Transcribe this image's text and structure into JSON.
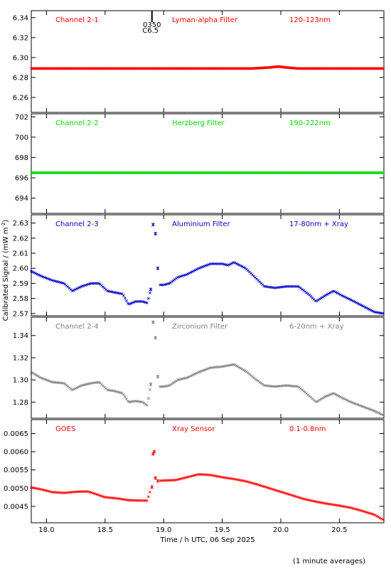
{
  "figure": {
    "ylabel": "Calibrated Signal / (mW m",
    "ylabel_sup": "-2",
    "ylabel_end": ")",
    "xlabel": "Time / h UTC, 06 Sep 2025",
    "footnote": "(1 minute averages)",
    "marker_label_top": "0350",
    "marker_label_bottom": "C6.5",
    "marker_time": 18.9
  },
  "chart_data": [
    {
      "type": "scatter",
      "name": "Channel 2-1",
      "filter": "Lyman-alpha Filter",
      "band": "120-123nm",
      "color": "#ff0000",
      "xlim": [
        17.87,
        20.88
      ],
      "ylim": [
        6.245,
        6.347
      ],
      "yticks": [
        6.26,
        6.28,
        6.3,
        6.32,
        6.34
      ],
      "ytick_labels": [
        "6.26",
        "6.28",
        "6.30",
        "6.32",
        "6.34"
      ],
      "x": [
        17.87,
        18.0,
        18.25,
        18.5,
        18.75,
        18.88,
        18.95,
        19.25,
        19.5,
        19.75,
        19.9,
        19.98,
        20.05,
        20.15,
        20.4,
        20.65,
        20.88
      ],
      "y": [
        6.289,
        6.289,
        6.289,
        6.289,
        6.289,
        6.289,
        6.289,
        6.289,
        6.289,
        6.289,
        6.29,
        6.291,
        6.29,
        6.289,
        6.289,
        6.289,
        6.289
      ]
    },
    {
      "type": "scatter",
      "name": "Channel 2-2",
      "filter": "Herzberg Filter",
      "band": "190-222nm",
      "color": "#00dd00",
      "xlim": [
        17.87,
        20.88
      ],
      "ylim": [
        692.5,
        702.3
      ],
      "yticks": [
        694,
        696,
        698,
        700,
        702
      ],
      "ytick_labels": [
        "694",
        "696",
        "698",
        "700",
        "702"
      ],
      "x": [
        17.87,
        18.2,
        18.5,
        18.8,
        19.0,
        19.3,
        19.6,
        19.9,
        20.2,
        20.5,
        20.88
      ],
      "y": [
        696.5,
        696.5,
        696.5,
        696.5,
        696.5,
        696.5,
        696.5,
        696.5,
        696.5,
        696.5,
        696.5
      ]
    },
    {
      "type": "scatter",
      "name": "Channel 2-3",
      "filter": "Aluminium Filter",
      "band": "17-80nm + Xray",
      "color": "#0000cc",
      "xlim": [
        17.87,
        20.88
      ],
      "ylim": [
        2.5685,
        2.6355
      ],
      "yticks": [
        2.57,
        2.58,
        2.59,
        2.6,
        2.61,
        2.62,
        2.63
      ],
      "ytick_labels": [
        "2.57",
        "2.58",
        "2.59",
        "2.60",
        "2.61",
        "2.62",
        "2.63"
      ],
      "x": [
        17.87,
        17.95,
        18.05,
        18.15,
        18.22,
        18.3,
        18.38,
        18.45,
        18.52,
        18.58,
        18.65,
        18.7,
        18.76,
        18.82,
        18.86,
        18.89,
        18.91,
        18.93,
        18.95,
        18.97,
        19.0,
        19.05,
        19.12,
        19.2,
        19.3,
        19.4,
        19.5,
        19.55,
        19.6,
        19.7,
        19.78,
        19.86,
        19.95,
        20.05,
        20.15,
        20.25,
        20.3,
        20.38,
        20.45,
        20.52,
        20.6,
        20.7,
        20.8,
        20.88
      ],
      "y": [
        2.598,
        2.595,
        2.592,
        2.59,
        2.585,
        2.588,
        2.59,
        2.59,
        2.585,
        2.584,
        2.583,
        2.576,
        2.578,
        2.578,
        2.577,
        2.586,
        2.629,
        2.623,
        2.6,
        2.589,
        2.589,
        2.59,
        2.594,
        2.596,
        2.6,
        2.603,
        2.603,
        2.602,
        2.604,
        2.6,
        2.594,
        2.588,
        2.587,
        2.588,
        2.588,
        2.582,
        2.578,
        2.582,
        2.585,
        2.582,
        2.579,
        2.575,
        2.571,
        2.57
      ]
    },
    {
      "type": "scatter",
      "name": "Channel 2-4",
      "filter": "Zirconium Filter",
      "band": "6-20nm + Xray",
      "color": "#808080",
      "xlim": [
        17.87,
        20.88
      ],
      "ylim": [
        1.2655,
        1.3565
      ],
      "yticks": [
        1.28,
        1.3,
        1.32,
        1.34
      ],
      "ytick_labels": [
        "1.28",
        "1.30",
        "1.32",
        "1.34"
      ],
      "x": [
        17.87,
        17.95,
        18.05,
        18.15,
        18.22,
        18.3,
        18.38,
        18.45,
        18.52,
        18.58,
        18.65,
        18.7,
        18.76,
        18.82,
        18.86,
        18.89,
        18.91,
        18.93,
        18.95,
        18.97,
        19.0,
        19.05,
        19.12,
        19.2,
        19.3,
        19.4,
        19.5,
        19.55,
        19.6,
        19.7,
        19.78,
        19.86,
        19.95,
        20.05,
        20.15,
        20.25,
        20.3,
        20.38,
        20.45,
        20.52,
        20.6,
        20.7,
        20.8,
        20.88
      ],
      "y": [
        1.307,
        1.302,
        1.298,
        1.297,
        1.291,
        1.295,
        1.297,
        1.298,
        1.291,
        1.29,
        1.288,
        1.28,
        1.281,
        1.28,
        1.277,
        1.296,
        1.352,
        1.338,
        1.303,
        1.294,
        1.294,
        1.295,
        1.3,
        1.302,
        1.307,
        1.311,
        1.312,
        1.313,
        1.314,
        1.308,
        1.301,
        1.295,
        1.294,
        1.295,
        1.294,
        1.285,
        1.28,
        1.285,
        1.288,
        1.284,
        1.28,
        1.276,
        1.272,
        1.268
      ]
    },
    {
      "type": "scatter",
      "name": "GOES",
      "filter": "Xray Sensor",
      "band": "0.1-0.8nm",
      "color": "#ff0000",
      "xlim": [
        17.87,
        20.88
      ],
      "ylim": [
        0.00405,
        0.00688
      ],
      "yticks": [
        0.0045,
        0.005,
        0.0055,
        0.006,
        0.0065
      ],
      "ytick_labels": [
        "0.0045",
        "0.0050",
        "0.0055",
        "0.0060",
        "0.0065"
      ],
      "x": [
        17.87,
        17.95,
        18.05,
        18.15,
        18.25,
        18.35,
        18.4,
        18.5,
        18.6,
        18.7,
        18.8,
        18.86,
        18.88,
        18.9,
        18.91,
        18.92,
        18.93,
        18.95,
        19.0,
        19.1,
        19.2,
        19.3,
        19.4,
        19.5,
        19.6,
        19.7,
        19.8,
        19.9,
        20.0,
        20.1,
        20.2,
        20.3,
        20.4,
        20.5,
        20.6,
        20.7,
        20.8,
        20.88
      ],
      "y": [
        0.00502,
        0.00497,
        0.00489,
        0.00487,
        0.0049,
        0.00491,
        0.00486,
        0.00475,
        0.00472,
        0.00467,
        0.00466,
        0.00466,
        0.00487,
        0.00503,
        0.00594,
        0.006,
        0.00528,
        0.0052,
        0.00521,
        0.00522,
        0.0053,
        0.00538,
        0.00536,
        0.0053,
        0.00525,
        0.00519,
        0.0051,
        0.005,
        0.0049,
        0.0048,
        0.0047,
        0.00463,
        0.00457,
        0.00452,
        0.00446,
        0.00437,
        0.00427,
        0.00412
      ]
    }
  ],
  "xaxis": {
    "xlim": [
      17.87,
      20.88
    ],
    "ticks": [
      18.0,
      18.5,
      19.0,
      19.5,
      20.0,
      20.5
    ],
    "tick_labels": [
      "18.0",
      "18.5",
      "19.0",
      "19.5",
      "20.0",
      "20.5"
    ]
  }
}
